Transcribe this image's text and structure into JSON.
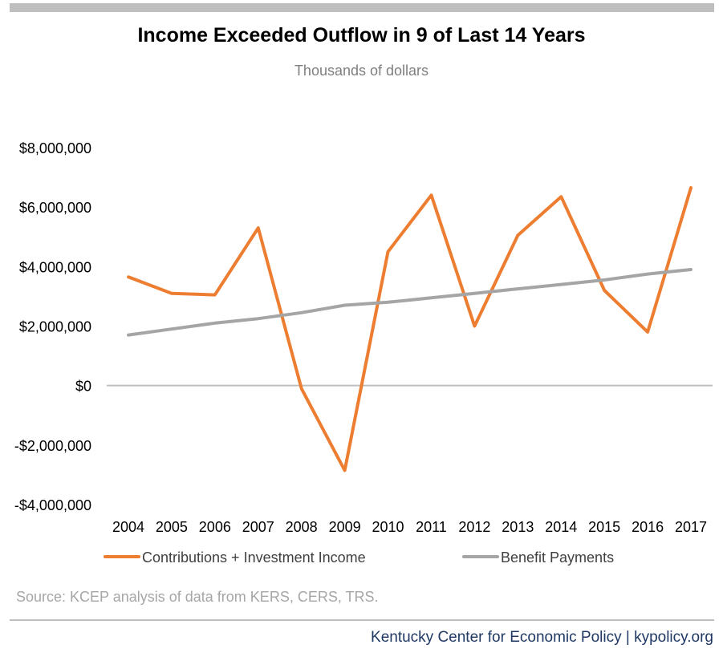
{
  "chart_data": {
    "type": "line",
    "title": "Income Exceeded Outflow in 9 of Last 14 Years",
    "subtitle": "Thousands of dollars",
    "categories": [
      "2004",
      "2005",
      "2006",
      "2007",
      "2008",
      "2009",
      "2010",
      "2011",
      "2012",
      "2013",
      "2014",
      "2015",
      "2016",
      "2017"
    ],
    "series": [
      {
        "name": "Contributions + Investment Income",
        "color": "#ed7d31",
        "values": [
          3650000,
          3100000,
          3050000,
          5300000,
          -100000,
          -2850000,
          4500000,
          6400000,
          2000000,
          5050000,
          6350000,
          3200000,
          1800000,
          6650000
        ]
      },
      {
        "name": "Benefit Payments",
        "color": "#a5a5a5",
        "values": [
          1700000,
          1900000,
          2100000,
          2250000,
          2450000,
          2700000,
          2800000,
          2950000,
          3100000,
          3250000,
          3400000,
          3550000,
          3750000,
          3900000
        ]
      }
    ],
    "ylim": [
      -4000000,
      8000000
    ],
    "yticks": [
      8000000,
      6000000,
      4000000,
      2000000,
      0,
      -2000000,
      -4000000
    ],
    "ytick_labels": [
      "$8,000,000",
      "$6,000,000",
      "$4,000,000",
      "$2,000,000",
      "$0",
      "-$2,000,000",
      "-$4,000,000"
    ],
    "legend_position": "bottom",
    "grid": false,
    "zero_line_color": "#bfbfbf",
    "source": "Source: KCEP analysis of data from KERS, CERS, TRS.",
    "footer": "Kentucky Center for Economic Policy | kypolicy.org"
  }
}
